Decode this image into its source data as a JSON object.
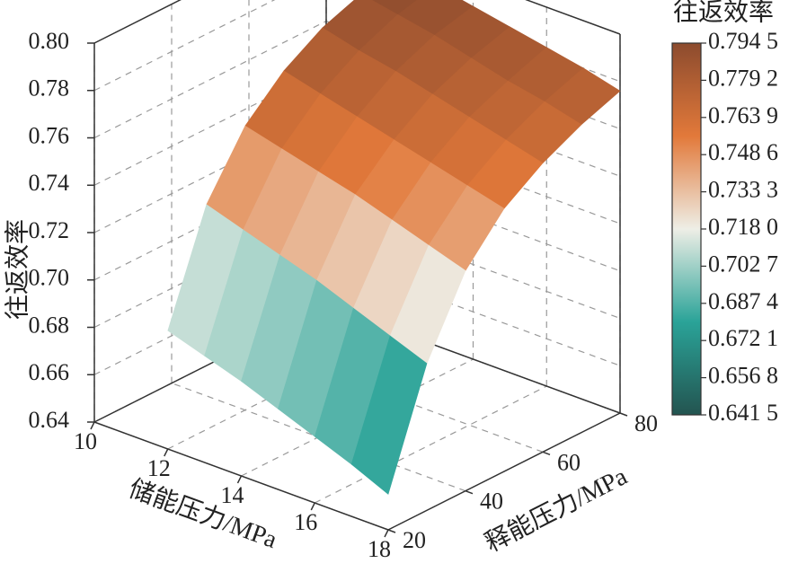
{
  "chart_data": {
    "type": "surface3d",
    "xlabel": "储能压力/MPa",
    "ylabel": "释能压力/MPa",
    "zlabel": "往返效率",
    "x": [
      12,
      13,
      14,
      15,
      16,
      17,
      18
    ],
    "y": [
      20,
      30,
      40,
      50,
      60,
      70,
      80
    ],
    "z": [
      [
        0.69,
        0.735,
        0.76,
        0.775,
        0.785,
        0.791,
        0.795
      ],
      [
        0.685,
        0.73,
        0.756,
        0.771,
        0.781,
        0.788,
        0.792
      ],
      [
        0.68,
        0.725,
        0.752,
        0.767,
        0.778,
        0.785,
        0.789
      ],
      [
        0.674,
        0.72,
        0.748,
        0.763,
        0.774,
        0.781,
        0.786
      ],
      [
        0.668,
        0.714,
        0.743,
        0.759,
        0.77,
        0.777,
        0.783
      ],
      [
        0.662,
        0.708,
        0.738,
        0.755,
        0.766,
        0.774,
        0.78
      ],
      [
        0.655,
        0.702,
        0.733,
        0.751,
        0.762,
        0.77,
        0.776
      ]
    ],
    "xlim": [
      10,
      18
    ],
    "xticks": [
      10,
      12,
      14,
      16,
      18
    ],
    "ylim": [
      20,
      80
    ],
    "yticks": [
      20,
      40,
      60,
      80
    ],
    "zlim": [
      0.64,
      0.8
    ],
    "zticks": [
      0.64,
      0.66,
      0.68,
      {
        "value": 0.7,
        "label": "0.70"
      },
      0.72,
      0.74,
      0.76,
      0.78,
      {
        "value": 0.8,
        "label": "0.80"
      }
    ],
    "grid": true,
    "colorbar": {
      "title": "往返效率",
      "lim": [
        0.6415,
        0.7945
      ],
      "colormap": [
        "#235450",
        "#2aa398",
        "#eeeee6",
        "#e2793a",
        "#8c4b2e"
      ],
      "ticks": [
        {
          "value": 0.7945,
          "label": "0.794 5"
        },
        {
          "value": 0.7792,
          "label": "0.779 2"
        },
        {
          "value": 0.7639,
          "label": "0.763 9"
        },
        {
          "value": 0.7486,
          "label": "0.748 6"
        },
        {
          "value": 0.7333,
          "label": "0.733 3"
        },
        {
          "value": 0.718,
          "label": "0.718 0"
        },
        {
          "value": 0.7027,
          "label": "0.702 7"
        },
        {
          "value": 0.6874,
          "label": "0.687 4"
        },
        {
          "value": 0.6721,
          "label": "0.672 1"
        },
        {
          "value": 0.6568,
          "label": "0.656 8"
        },
        {
          "value": 0.6415,
          "label": "0.641 5"
        }
      ]
    }
  }
}
